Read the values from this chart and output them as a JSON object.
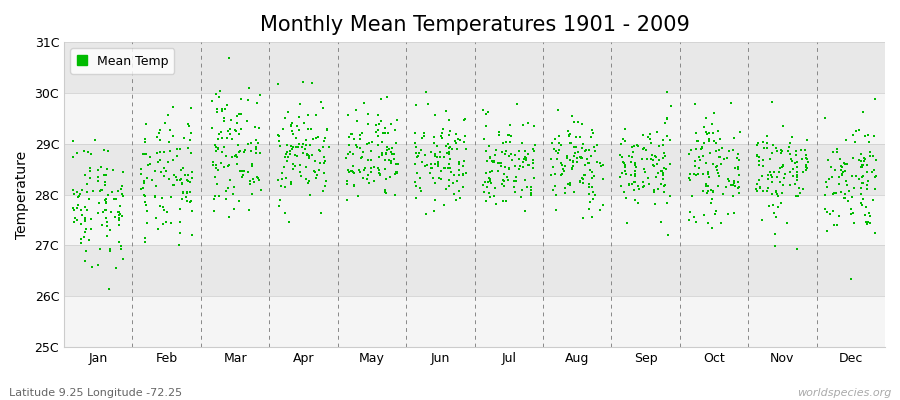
{
  "title": "Monthly Mean Temperatures 1901 - 2009",
  "ylabel": "Temperature",
  "xlabel_months": [
    "Jan",
    "Feb",
    "Mar",
    "Apr",
    "May",
    "Jun",
    "Jul",
    "Aug",
    "Sep",
    "Oct",
    "Nov",
    "Dec"
  ],
  "subtitle": "Latitude 9.25 Longitude -72.25",
  "watermark": "worldspecies.org",
  "ylim": [
    25,
    31
  ],
  "ytick_labels": [
    "25C",
    "26C",
    "27C",
    "28C",
    "29C",
    "30C",
    "31C"
  ],
  "ytick_values": [
    25,
    26,
    27,
    28,
    29,
    30,
    31
  ],
  "dot_color": "#00bb00",
  "dot_size": 3,
  "figure_bg": "#ffffff",
  "plot_bg": "#f5f5f5",
  "band_light": "#f5f5f5",
  "band_dark": "#e8e8e8",
  "legend_label": "Mean Temp",
  "n_years": 109,
  "month_means": [
    27.85,
    28.25,
    28.9,
    28.85,
    28.7,
    28.65,
    28.6,
    28.6,
    28.55,
    28.5,
    28.45,
    28.35
  ],
  "month_stds": [
    0.65,
    0.62,
    0.58,
    0.52,
    0.48,
    0.46,
    0.46,
    0.46,
    0.46,
    0.48,
    0.5,
    0.58
  ],
  "title_fontsize": 15,
  "axis_fontsize": 10,
  "tick_fontsize": 9,
  "legend_fontsize": 9,
  "dashed_line_color": "#888888",
  "subtitle_color": "#666666",
  "watermark_color": "#aaaaaa"
}
